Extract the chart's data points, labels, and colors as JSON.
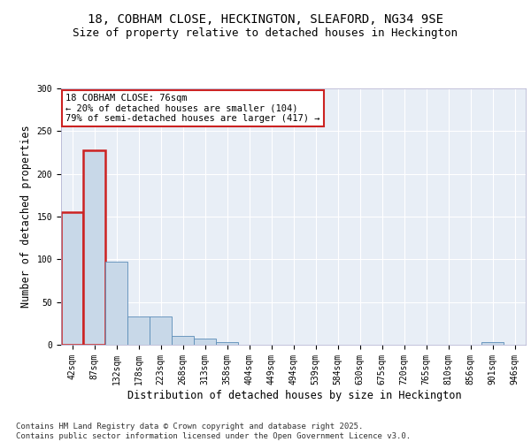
{
  "title1": "18, COBHAM CLOSE, HECKINGTON, SLEAFORD, NG34 9SE",
  "title2": "Size of property relative to detached houses in Heckington",
  "xlabel": "Distribution of detached houses by size in Heckington",
  "ylabel": "Number of detached properties",
  "categories": [
    "42sqm",
    "87sqm",
    "132sqm",
    "178sqm",
    "223sqm",
    "268sqm",
    "313sqm",
    "358sqm",
    "404sqm",
    "449sqm",
    "494sqm",
    "539sqm",
    "584sqm",
    "630sqm",
    "675sqm",
    "720sqm",
    "765sqm",
    "810sqm",
    "856sqm",
    "901sqm",
    "946sqm"
  ],
  "values": [
    155,
    228,
    97,
    33,
    33,
    10,
    7,
    3,
    0,
    0,
    0,
    0,
    0,
    0,
    0,
    0,
    0,
    0,
    0,
    3,
    0
  ],
  "bar_color": "#c8d8e8",
  "bar_edge_color": "#5b8db8",
  "highlight_bars": [
    0,
    1
  ],
  "highlight_edge_color": "#cc2222",
  "annotation_text": "18 COBHAM CLOSE: 76sqm\n← 20% of detached houses are smaller (104)\n79% of semi-detached houses are larger (417) →",
  "annotation_box_color": "#ffffff",
  "annotation_box_edge_color": "#cc2222",
  "footer_text": "Contains HM Land Registry data © Crown copyright and database right 2025.\nContains public sector information licensed under the Open Government Licence v3.0.",
  "ylim": [
    0,
    300
  ],
  "yticks": [
    0,
    50,
    100,
    150,
    200,
    250,
    300
  ],
  "bg_color": "#e8eef6",
  "grid_color": "#ffffff",
  "title_fontsize": 10,
  "subtitle_fontsize": 9,
  "axis_fontsize": 8.5,
  "tick_fontsize": 7,
  "annotation_fontsize": 7.5,
  "footer_fontsize": 6.5
}
